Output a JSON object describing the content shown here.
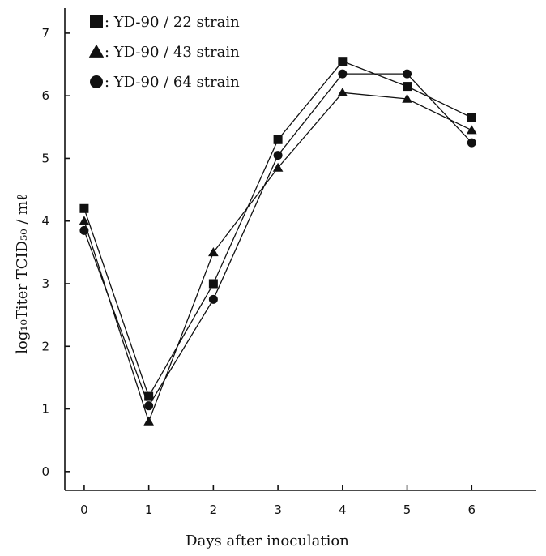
{
  "chart_data": {
    "type": "line",
    "xlabel": "Days after inoculation",
    "ylabel": "log₁₀Titer TCID₅₀ / mℓ",
    "x": [
      0,
      1,
      2,
      3,
      4,
      5,
      6
    ],
    "xlim": [
      -0.3,
      7.0
    ],
    "ylim": [
      -0.3,
      7.4
    ],
    "xticks": [
      "0",
      "1",
      "2",
      "3",
      "4",
      "5",
      "6"
    ],
    "yticks": [
      "0",
      "1",
      "2",
      "3",
      "4",
      "5",
      "6",
      "7"
    ],
    "legend_position": "top-left",
    "series": [
      {
        "name": "YD-90 / 22 strain",
        "marker": "square",
        "values": [
          4.2,
          1.2,
          3.0,
          5.3,
          6.55,
          6.15,
          5.65
        ]
      },
      {
        "name": "YD-90 / 43 strain",
        "marker": "triangle",
        "values": [
          4.0,
          0.8,
          3.5,
          4.85,
          6.05,
          5.95,
          5.45
        ]
      },
      {
        "name": "YD-90 / 64 strain",
        "marker": "circle",
        "values": [
          3.85,
          1.05,
          2.75,
          5.05,
          6.35,
          6.35,
          5.25
        ]
      }
    ],
    "legend": [
      {
        "prefix": ": ",
        "label": "YD-90 / 22 strain"
      },
      {
        "prefix": ": ",
        "label": "YD-90 / 43 strain"
      },
      {
        "prefix": ": ",
        "label": "YD-90 / 64 strain"
      }
    ],
    "grid": false,
    "colors": {
      "ink": "#111111",
      "background": "#ffffff"
    }
  }
}
